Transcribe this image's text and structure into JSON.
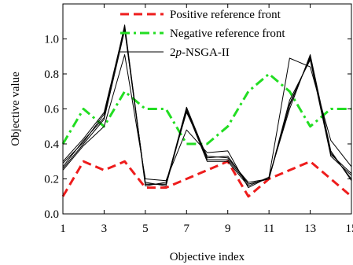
{
  "chart_data": {
    "type": "line",
    "xlabel": "Objective index",
    "ylabel": "Objective value",
    "xlim": [
      1,
      15
    ],
    "ylim": [
      0,
      1.2
    ],
    "x_ticks": [
      1,
      3,
      5,
      7,
      9,
      11,
      13,
      15
    ],
    "x_tick_labels": [
      "1",
      "3",
      "5",
      "7",
      "9",
      "11",
      "13",
      "15"
    ],
    "y_ticks": [
      0,
      0.2,
      0.4,
      0.6,
      0.8,
      1.0
    ],
    "y_tick_labels": [
      "0.0",
      "0.2",
      "0.4",
      "0.6",
      "0.8",
      "1.0"
    ],
    "grid": false,
    "legend_position": "top-right",
    "legend": [
      {
        "label_prefix": "Positive reference front",
        "label_italic": "",
        "label_suffix": "",
        "color": "#ee1c1c",
        "style": "dashed",
        "width": 3
      },
      {
        "label_prefix": "Negative reference front",
        "label_italic": "",
        "label_suffix": "",
        "color": "#22dd22",
        "style": "dashdot",
        "width": 3
      },
      {
        "label_prefix": "2",
        "label_italic": "p",
        "label_suffix": "-NSGA-II",
        "color": "#000000",
        "style": "solid",
        "width": 1
      }
    ],
    "x": [
      1,
      2,
      3,
      4,
      5,
      6,
      7,
      8,
      9,
      10,
      11,
      12,
      13,
      14,
      15
    ],
    "series": [
      {
        "name": "Positive reference front",
        "color": "#ee1c1c",
        "style": "dashed",
        "width": 3,
        "values": [
          0.1,
          0.3,
          0.25,
          0.3,
          0.15,
          0.15,
          0.2,
          0.25,
          0.3,
          0.1,
          0.2,
          0.25,
          0.3,
          0.2,
          0.1
        ]
      },
      {
        "name": "Negative reference front",
        "color": "#22dd22",
        "style": "dashdot",
        "width": 3,
        "values": [
          0.4,
          0.6,
          0.5,
          0.7,
          0.6,
          0.6,
          0.4,
          0.4,
          0.5,
          0.7,
          0.8,
          0.7,
          0.5,
          0.6,
          0.6
        ]
      },
      {
        "name": "2p-NSGA-II",
        "color": "#000000",
        "style": "solid",
        "width": 1,
        "values": [
          0.27,
          0.42,
          0.55,
          1.08,
          0.17,
          0.17,
          0.6,
          0.31,
          0.31,
          0.17,
          0.2,
          0.62,
          0.9,
          0.35,
          0.2
        ]
      },
      {
        "name": "2p-NSGA-II",
        "color": "#000000",
        "style": "solid",
        "width": 1,
        "values": [
          0.29,
          0.41,
          0.57,
          1.06,
          0.16,
          0.18,
          0.58,
          0.33,
          0.32,
          0.18,
          0.2,
          0.65,
          0.88,
          0.33,
          0.22
        ]
      },
      {
        "name": "2p-NSGA-II",
        "color": "#000000",
        "style": "solid",
        "width": 1,
        "values": [
          0.26,
          0.4,
          0.54,
          1.05,
          0.18,
          0.16,
          0.59,
          0.3,
          0.3,
          0.16,
          0.21,
          0.6,
          0.91,
          0.36,
          0.19
        ]
      },
      {
        "name": "2p-NSGA-II",
        "color": "#000000",
        "style": "solid",
        "width": 1,
        "values": [
          0.3,
          0.43,
          0.58,
          1.07,
          0.17,
          0.17,
          0.61,
          0.32,
          0.33,
          0.17,
          0.2,
          0.63,
          0.89,
          0.34,
          0.23
        ]
      },
      {
        "name": "2p-NSGA-II",
        "color": "#000000",
        "style": "solid",
        "width": 1,
        "values": [
          0.25,
          0.39,
          0.5,
          0.91,
          0.2,
          0.19,
          0.48,
          0.35,
          0.36,
          0.15,
          0.21,
          0.89,
          0.84,
          0.42,
          0.27
        ]
      }
    ]
  }
}
